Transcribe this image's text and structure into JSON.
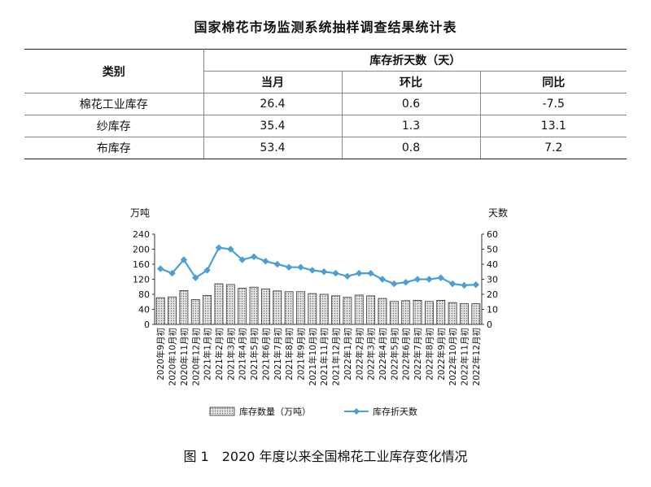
{
  "table": {
    "title": "国家棉花市场监测系统抽样调查结果统计表",
    "category_header": "类别",
    "group_header": "库存折天数（天）",
    "columns": [
      "当月",
      "环比",
      "同比"
    ],
    "rows": [
      {
        "label": "棉花工业库存",
        "values": [
          "26.4",
          "0.6",
          "-7.5"
        ]
      },
      {
        "label": "纱库存",
        "values": [
          "35.4",
          "1.3",
          "13.1"
        ]
      },
      {
        "label": "布库存",
        "values": [
          "53.4",
          "0.8",
          "7.2"
        ]
      }
    ]
  },
  "caption": "图 1　2020 年度以来全国棉花工业库存变化情况",
  "chart_data": {
    "type": "bar",
    "categories": [
      "2020年9月初",
      "2020年10月初",
      "2020年11月初",
      "2020年12月初",
      "2021年1月初",
      "2021年2月初",
      "2021年3月初",
      "2021年4月初",
      "2021年5月初",
      "2021年6月初",
      "2021年7月初",
      "2021年8月初",
      "2021年9月初",
      "2021年10月初",
      "2021年11月初",
      "2021年12月初",
      "2022年1月初",
      "2022年2月初",
      "2022年3月初",
      "2022年4月初",
      "2022年5月初",
      "2022年6月初",
      "2022年7月初",
      "2022年8月初",
      "2022年9月初",
      "2022年10月初",
      "2022年11月初",
      "2022年12月初"
    ],
    "ylabel_left": "万吨",
    "ylabel_right": "天数",
    "ylim_left": [
      0,
      240
    ],
    "ylim_right": [
      0,
      60
    ],
    "yticks_left": [
      0,
      40,
      80,
      120,
      160,
      200,
      240
    ],
    "yticks_right": [
      0,
      10,
      20,
      30,
      40,
      50,
      60
    ],
    "series": [
      {
        "name": "库存数量（万吨）",
        "kind": "bar",
        "axis": "left",
        "values": [
          71,
          73,
          90,
          66,
          77,
          108,
          106,
          96,
          99,
          94,
          89,
          87,
          87,
          82,
          80,
          76,
          72,
          78,
          76,
          69,
          61,
          63,
          64,
          61,
          64,
          58,
          55,
          55
        ]
      },
      {
        "name": "库存折天数",
        "kind": "line",
        "axis": "right",
        "values": [
          37,
          34,
          43,
          31,
          36,
          51,
          50,
          43,
          45,
          42,
          40,
          38,
          38,
          36,
          35,
          34,
          32,
          34,
          34,
          30,
          27,
          28,
          30,
          30,
          31,
          27,
          26,
          26.4
        ]
      }
    ],
    "colors": {
      "bar_fill": "#cfcfcf",
      "bar_stroke": "#333333",
      "line": "#4a9fd6"
    },
    "legend_position": "bottom",
    "grid": false
  }
}
